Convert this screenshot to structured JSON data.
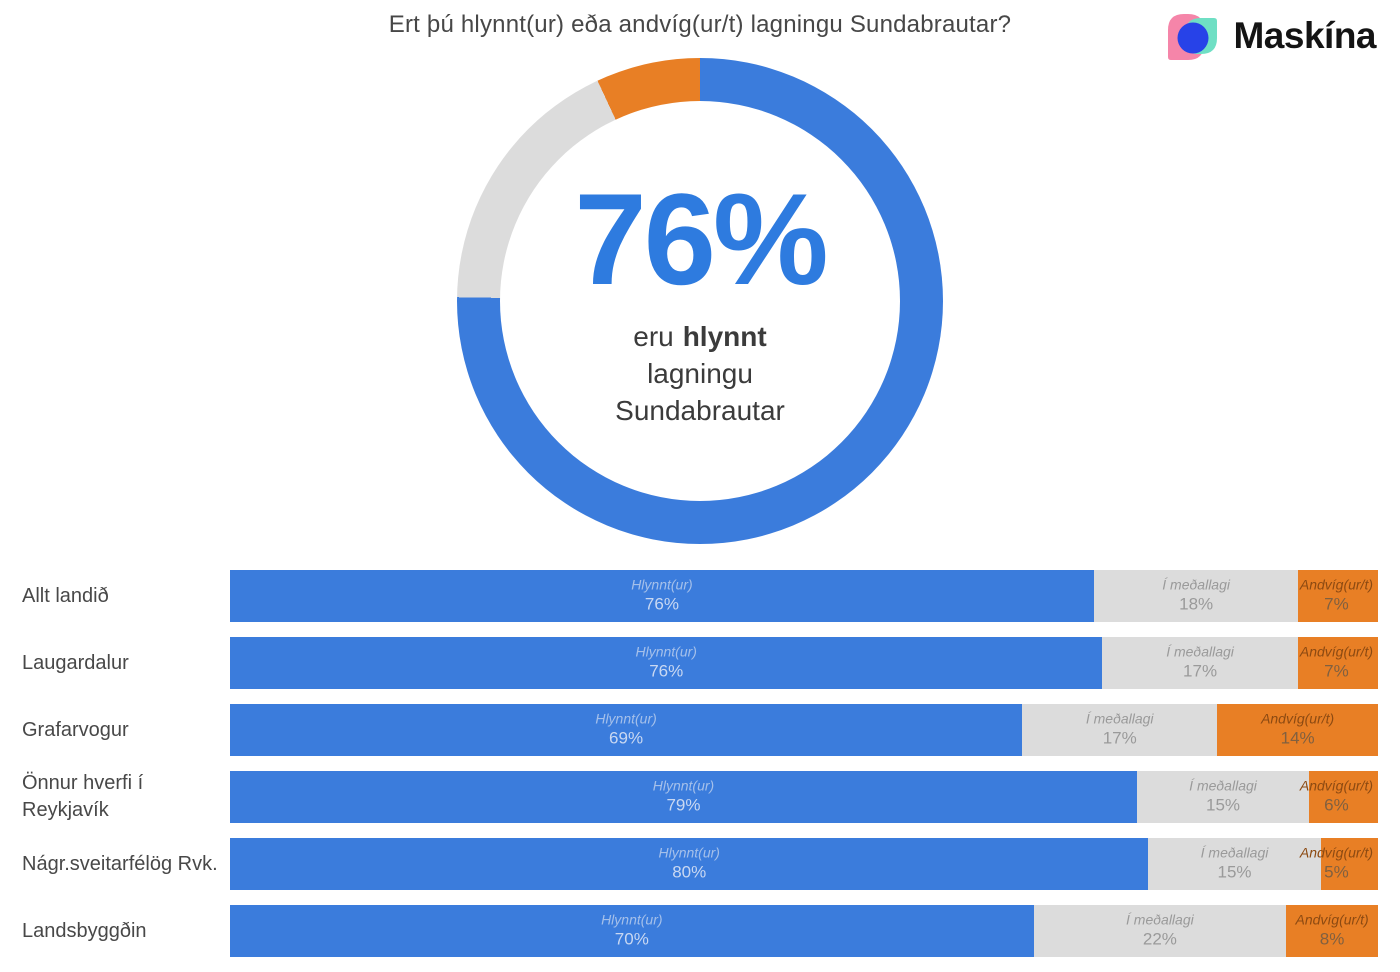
{
  "title": "Ert þú hlynnt(ur) eða andvíg(ur/t) lagningu Sundabrautar?",
  "brand": {
    "name": "Maskína"
  },
  "colors": {
    "blue": "#3B7CDC",
    "gray": "#DCDCDC",
    "orange": "#E87F25",
    "text_blue": "#2E7BDF",
    "logo_pink": "#F585A9",
    "logo_teal": "#6FDFC4",
    "logo_blue": "#2742E8"
  },
  "donut": {
    "value_text": "76%",
    "caption_pre": "eru",
    "caption_highlight": "hlynnt",
    "caption_line2": "lagningu",
    "caption_line3": "Sundabrautar"
  },
  "chart_data": [
    {
      "type": "pie",
      "subtype": "donut",
      "title": "Ert þú hlynnt(ur) eða andvíg(ur/t) lagningu Sundabrautar?",
      "labels": [
        "Hlynnt(ur)",
        "Í meðallagi",
        "Andvíg(ur/t)"
      ],
      "values": [
        76,
        18,
        7
      ],
      "colors": [
        "#3B7CDC",
        "#DCDCDC",
        "#E87F25"
      ],
      "start_angle_deg": 0,
      "center_text": "76% eru hlynnt lagningu Sundabrautar"
    },
    {
      "type": "bar",
      "subtype": "stacked-horizontal",
      "categories": [
        "Allt landið",
        "Laugardalur",
        "Grafarvogur",
        "Önnur hverfi í Reykjavík",
        "Nágr.sveitarfélög Rvk.",
        "Landsbyggðin"
      ],
      "categories_display": [
        [
          "Allt landið"
        ],
        [
          "Laugardalur"
        ],
        [
          "Grafarvogur"
        ],
        [
          "Önnur hverfi í",
          "Reykjavík"
        ],
        [
          "Nágr.sveitarfélög Rvk."
        ],
        [
          "Landsbyggðin"
        ]
      ],
      "series": [
        {
          "key": "hlynnt",
          "name": "Hlynnt(ur)",
          "values": [
            76,
            76,
            69,
            79,
            80,
            70
          ],
          "fill": "#3B7CDC",
          "label_color": "#A5C0EA",
          "value_color": "#C9D8F2"
        },
        {
          "key": "medallagi",
          "name": "Í meðallagi",
          "values": [
            18,
            17,
            17,
            15,
            15,
            22
          ],
          "fill": "#DCDCDC",
          "label_color": "#9A9A9A",
          "value_color": "#9A9A9A"
        },
        {
          "key": "andvig",
          "name": "Andvíg(ur/t)",
          "values": [
            7,
            7,
            14,
            6,
            5,
            8
          ],
          "fill": "#E87F25",
          "label_color": "#8C4A12",
          "value_color": "#806040"
        }
      ],
      "xlim": [
        0,
        100
      ],
      "value_suffix": "%",
      "grid": false,
      "legend_position": "none"
    }
  ]
}
